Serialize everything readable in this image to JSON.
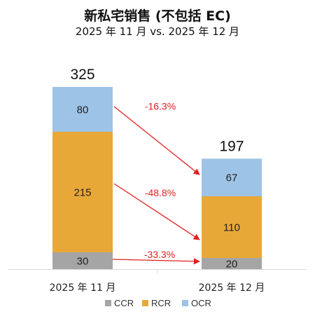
{
  "chart_data": {
    "type": "bar",
    "stacked": true,
    "title": "新私宅销售 (不包括 EC)",
    "subtitle": "2025 年 11 月 vs. 2025 年 12 月",
    "categories": [
      "2025 年 11 月",
      "2025 年 12 月"
    ],
    "series": [
      {
        "name": "CCR",
        "color": "#a5a5a5",
        "values": [
          30,
          20
        ]
      },
      {
        "name": "RCR",
        "color": "#e8a838",
        "values": [
          215,
          110
        ]
      },
      {
        "name": "OCR",
        "color": "#9dc3e6",
        "values": [
          80,
          67
        ]
      }
    ],
    "totals": [
      325,
      197
    ],
    "changes": [
      {
        "series": "CCR",
        "label": "-33.3%"
      },
      {
        "series": "RCR",
        "label": "-48.8%"
      },
      {
        "series": "OCR",
        "label": "-16.3%"
      }
    ],
    "ylim": [
      0,
      350
    ],
    "legend_position": "bottom",
    "grid": false
  }
}
